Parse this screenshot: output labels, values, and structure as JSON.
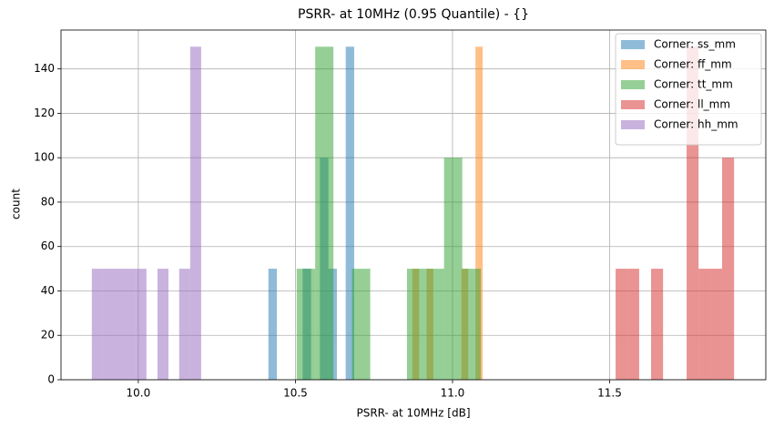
{
  "chart_data": {
    "type": "histogram",
    "title": "PSRR- at 10MHz (0.95 Quantile) - {}",
    "x_label": "PSRR- at 10MHz [dB]",
    "y_label": "count",
    "xlim": [
      9.754,
      11.997
    ],
    "ylim": [
      0,
      157.5
    ],
    "xticks": [
      {
        "value": 10,
        "label": "10.0"
      },
      10.5,
      {
        "value": 11,
        "label": "11.0"
      },
      11.5
    ],
    "yticks": [
      0,
      20,
      40,
      60,
      80,
      100,
      120,
      140
    ],
    "grid": true,
    "legend": "upper right",
    "alpha": 0.5,
    "series": [
      {
        "name": "Corner: ss_mm",
        "color": "#1f77b4",
        "bins": [
          10.414,
          10.441,
          10.468,
          10.496,
          10.523,
          10.55,
          10.578,
          10.605,
          10.632,
          10.66,
          10.687
        ],
        "values": [
          50,
          0,
          0,
          0,
          50,
          0,
          100,
          50,
          0,
          150
        ]
      },
      {
        "name": "Corner: ff_mm",
        "color": "#ff7f0e",
        "bins": [
          10.872,
          10.894,
          10.917,
          10.939,
          10.961,
          10.984,
          11.006,
          11.028,
          11.05,
          11.073,
          11.096
        ],
        "values": [
          50,
          0,
          50,
          0,
          0,
          0,
          0,
          50,
          0,
          150
        ]
      },
      {
        "name": "Corner: tt_mm",
        "color": "#2ca02c",
        "bins": [
          10.504,
          10.563,
          10.621,
          10.68,
          10.738,
          10.797,
          10.855,
          10.914,
          10.973,
          11.031,
          11.09
        ],
        "values": [
          50,
          150,
          0,
          50,
          0,
          0,
          50,
          50,
          100,
          50
        ]
      },
      {
        "name": "Corner: ll_mm",
        "color": "#d62728",
        "bins": [
          11.519,
          11.557,
          11.594,
          11.632,
          11.67,
          11.707,
          11.745,
          11.783,
          11.82,
          11.858,
          11.896
        ],
        "values": [
          50,
          50,
          0,
          50,
          0,
          0,
          150,
          50,
          50,
          100
        ]
      },
      {
        "name": "Corner: hh_mm",
        "color": "#9467bd",
        "bins": [
          9.852,
          9.887,
          9.922,
          9.957,
          9.991,
          10.026,
          10.061,
          10.096,
          10.13,
          10.165,
          10.2
        ],
        "values": [
          50,
          50,
          50,
          50,
          50,
          0,
          50,
          0,
          50,
          150
        ]
      }
    ]
  }
}
